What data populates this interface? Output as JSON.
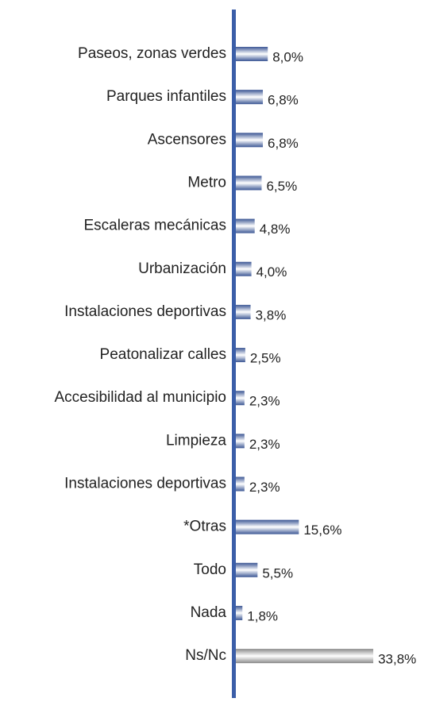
{
  "chart_data": {
    "type": "bar",
    "orientation": "horizontal",
    "categories": [
      "Paseos, zonas verdes",
      "Parques infantiles",
      "Ascensores",
      "Metro",
      "Escaleras mecánicas",
      "Urbanización",
      "Instalaciones deportivas",
      "Peatonalizar calles",
      "Accesibilidad al municipio",
      "Limpieza",
      "Instalaciones deportivas",
      "*Otras",
      "Todo",
      "Nada",
      "Ns/Nc"
    ],
    "values": [
      8.0,
      6.8,
      6.8,
      6.5,
      4.8,
      4.0,
      3.8,
      2.5,
      2.3,
      2.3,
      2.3,
      15.6,
      5.5,
      1.8,
      33.8
    ],
    "value_labels": [
      "8,0%",
      "6,8%",
      "6,8%",
      "6,5%",
      "4,8%",
      "4,0%",
      "3,8%",
      "2,5%",
      "2,3%",
      "2,3%",
      "2,3%",
      "15,6%",
      "5,5%",
      "1,8%",
      "33,8%"
    ],
    "colors": [
      "#3b5694",
      "#3b5694",
      "#3b5694",
      "#3b5694",
      "#3b5694",
      "#3b5694",
      "#3b5694",
      "#3b5694",
      "#3b5694",
      "#3b5694",
      "#3b5694",
      "#3b5694",
      "#3b5694",
      "#3b5694",
      "#8a8a8a"
    ],
    "axis_color": "#3b5ea8"
  }
}
